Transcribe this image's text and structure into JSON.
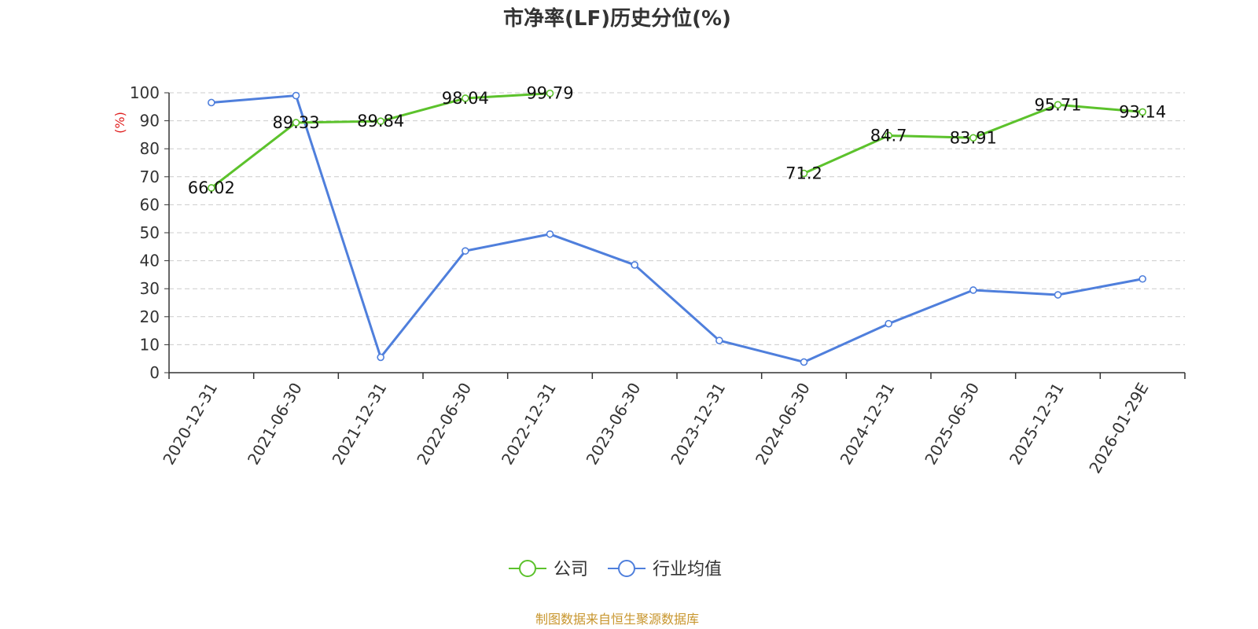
{
  "chart_data": {
    "type": "line",
    "title": "市净率(LF)历史分位(%)",
    "ylabel": "(%)",
    "ylim": [
      0,
      100
    ],
    "yticks": [
      0,
      10,
      20,
      30,
      40,
      50,
      60,
      70,
      80,
      90,
      100
    ],
    "categories": [
      "2020-12-31",
      "2021-06-30",
      "2021-12-31",
      "2022-06-30",
      "2022-12-31",
      "2023-06-30",
      "2023-12-31",
      "2024-06-30",
      "2024-12-31",
      "2025-06-30",
      "2025-12-31",
      "2026-01-29E"
    ],
    "grid": true,
    "legend_position": "bottom-center",
    "series": [
      {
        "name": "公司",
        "color": "#5cc22c",
        "values": [
          66.02,
          89.33,
          89.84,
          98.04,
          99.79,
          null,
          null,
          71.2,
          84.7,
          83.91,
          95.71,
          93.14
        ],
        "labels": [
          "66.02",
          "89.33",
          "89.84",
          "98.04",
          "99.79",
          "",
          "",
          "71.2",
          "84.7",
          "83.91",
          "95.71",
          "93.14"
        ]
      },
      {
        "name": "行业均值",
        "color": "#4f7fdc",
        "values": [
          96.5,
          99.0,
          5.5,
          43.5,
          49.5,
          38.5,
          11.5,
          3.8,
          17.5,
          29.5,
          27.8,
          33.5
        ]
      }
    ]
  },
  "footer": {
    "source": "制图数据来自恒生聚源数据库",
    "source_color": "#c8962e"
  },
  "colors": {
    "axis": "#333333",
    "grid": "#cccccc",
    "ylabel": "#e02020"
  }
}
